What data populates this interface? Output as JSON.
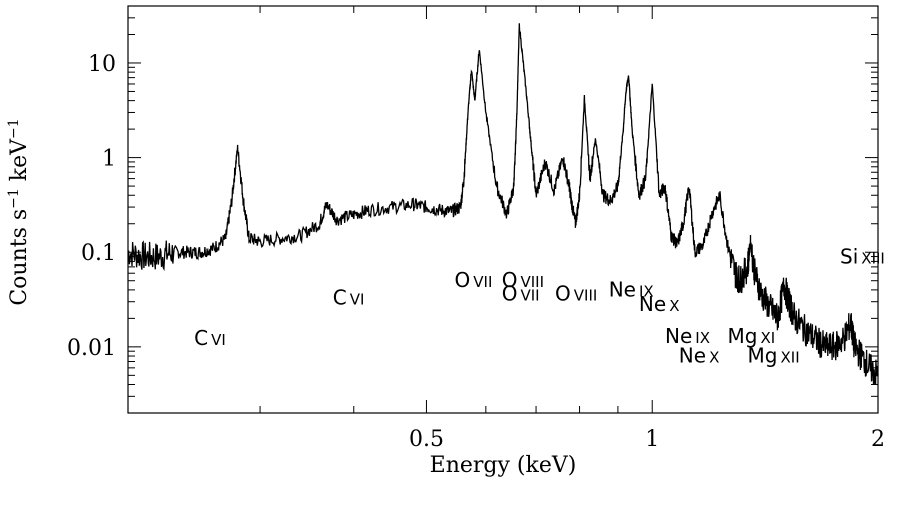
{
  "chart_data": {
    "type": "line",
    "title": "",
    "xlabel": "Energy (keV)",
    "ylabel_main": "Counts s",
    "ylabel_sup1": "−1",
    "ylabel_mid": " keV",
    "ylabel_sup2": "−1",
    "xscale": "log",
    "yscale": "log",
    "xlim": [
      0.2,
      2.0
    ],
    "ylim": [
      0.002,
      40
    ],
    "x_ticks": [
      {
        "value": 0.5,
        "label": "0.5"
      },
      {
        "value": 1,
        "label": "1"
      },
      {
        "value": 2,
        "label": "2"
      }
    ],
    "y_ticks": [
      {
        "value": 0.01,
        "label": "0.01"
      },
      {
        "value": 0.1,
        "label": "0.1"
      },
      {
        "value": 1,
        "label": "1"
      },
      {
        "value": 10,
        "label": "10"
      }
    ],
    "grid": false,
    "series": [
      {
        "x": [
          0.2,
          0.21,
          0.22,
          0.23,
          0.24,
          0.25,
          0.26,
          0.27,
          0.275,
          0.28,
          0.285,
          0.29,
          0.3,
          0.32,
          0.34,
          0.36,
          0.368,
          0.38,
          0.4,
          0.42,
          0.45,
          0.48,
          0.5,
          0.52,
          0.54,
          0.555,
          0.561,
          0.568,
          0.574,
          0.58,
          0.588,
          0.6,
          0.62,
          0.64,
          0.654,
          0.66,
          0.665,
          0.68,
          0.69,
          0.7,
          0.72,
          0.74,
          0.76,
          0.775,
          0.78,
          0.79,
          0.8,
          0.812,
          0.826,
          0.84,
          0.86,
          0.88,
          0.9,
          0.915,
          0.922,
          0.93,
          0.94,
          0.96,
          0.98,
          1.0,
          1.022,
          1.04,
          1.06,
          1.08,
          1.1,
          1.12,
          1.14,
          1.17,
          1.2,
          1.23,
          1.26,
          1.29,
          1.31,
          1.34,
          1.352,
          1.37,
          1.4,
          1.44,
          1.47,
          1.5,
          1.52,
          1.55,
          1.6,
          1.65,
          1.7,
          1.75,
          1.8,
          1.84,
          1.86,
          1.9,
          1.95,
          2.0
        ],
        "values": [
          0.1,
          0.09,
          0.09,
          0.1,
          0.1,
          0.1,
          0.11,
          0.14,
          0.35,
          1.3,
          0.35,
          0.14,
          0.13,
          0.14,
          0.15,
          0.2,
          0.32,
          0.22,
          0.25,
          0.28,
          0.3,
          0.32,
          0.3,
          0.28,
          0.27,
          0.3,
          0.6,
          3.0,
          8.5,
          4.0,
          14.0,
          3.0,
          0.5,
          0.25,
          0.5,
          3.0,
          25.0,
          4.5,
          1.3,
          0.4,
          0.9,
          0.45,
          1.0,
          0.5,
          0.35,
          0.2,
          0.4,
          4.3,
          0.6,
          1.6,
          0.4,
          0.35,
          0.5,
          2.0,
          4.8,
          7.5,
          2.0,
          0.4,
          0.6,
          6.0,
          0.4,
          0.5,
          0.15,
          0.12,
          0.2,
          0.5,
          0.1,
          0.12,
          0.25,
          0.4,
          0.12,
          0.06,
          0.05,
          0.07,
          0.13,
          0.06,
          0.035,
          0.025,
          0.02,
          0.045,
          0.03,
          0.02,
          0.015,
          0.012,
          0.01,
          0.01,
          0.012,
          0.018,
          0.01,
          0.008,
          0.006,
          0.005
        ]
      }
    ],
    "annotations": [
      {
        "text": "C",
        "ion": "VI",
        "x": 0.245,
        "y": 0.0105
      },
      {
        "text": "C",
        "ion": "VI",
        "x": 0.375,
        "y": 0.028
      },
      {
        "text": "O",
        "ion": "VII",
        "x": 0.545,
        "y": 0.043
      },
      {
        "text": "O",
        "ion": "VIII",
        "x": 0.63,
        "y": 0.043
      },
      {
        "text": "O",
        "ion": "VII",
        "x": 0.63,
        "y": 0.031
      },
      {
        "text": "O",
        "ion": "VIII",
        "x": 0.742,
        "y": 0.031
      },
      {
        "text": "Ne",
        "ion": "IX",
        "x": 0.875,
        "y": 0.034
      },
      {
        "text": "Ne",
        "ion": "X",
        "x": 0.96,
        "y": 0.024
      },
      {
        "text": "Ne",
        "ion": "IX",
        "x": 1.04,
        "y": 0.011
      },
      {
        "text": "Ne",
        "ion": "X",
        "x": 1.085,
        "y": 0.0068
      },
      {
        "text": "Mg",
        "ion": "XI",
        "x": 1.26,
        "y": 0.011
      },
      {
        "text": "Mg",
        "ion": "XII",
        "x": 1.34,
        "y": 0.0068
      },
      {
        "text": "Si",
        "ion": "XIII",
        "x": 1.78,
        "y": 0.076
      }
    ]
  }
}
